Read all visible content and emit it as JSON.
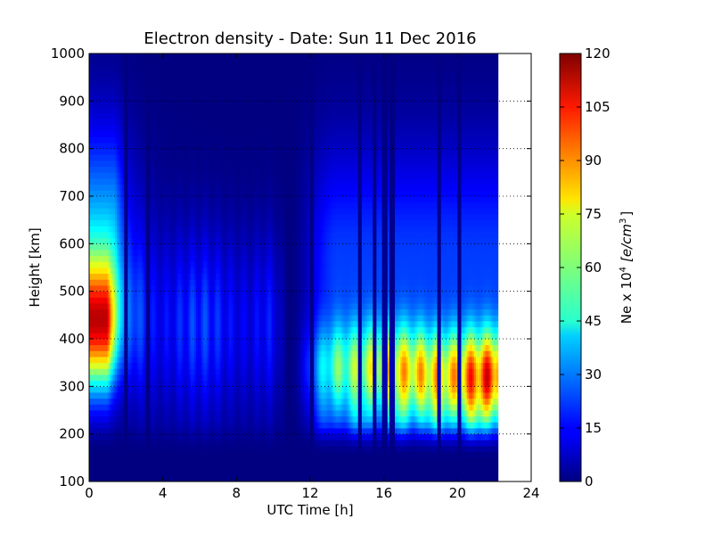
{
  "chart_data": {
    "type": "heatmap",
    "title": "Electron density - Date: Sun 11 Dec 2016",
    "xlabel": "UTC Time [h]",
    "ylabel": "Height [km]",
    "xlim": [
      0,
      24
    ],
    "ylim": [
      100,
      1000
    ],
    "x_ticks": [
      "0",
      "4",
      "8",
      "12",
      "16",
      "20",
      "24"
    ],
    "y_ticks": [
      "100",
      "200",
      "300",
      "400",
      "500",
      "600",
      "700",
      "800",
      "900",
      "1000"
    ],
    "data_end_hour": 22.2,
    "colormap": "jet",
    "colorbar": {
      "label": "Ne x 10^4 [e/cm^3]",
      "label_parts": {
        "prefix": "Ne x 10",
        "exponent": "4",
        "unit": "[e/cm",
        "unit_exp": "3",
        "unit_close": "]"
      },
      "range": [
        0,
        120
      ],
      "ticks": [
        "0",
        "15",
        "30",
        "45",
        "60",
        "75",
        "90",
        "105",
        "120"
      ]
    },
    "grid": "dotted horizontal at y ticks",
    "features": {
      "morning_peak": {
        "hours": [
          0,
          0.9
        ],
        "height_km": 430,
        "max_ne": 95
      },
      "night_minimum": {
        "hours": [
          4,
          11
        ],
        "max_ne": 30
      },
      "day_layer": {
        "hours": [
          11,
          22.2
        ],
        "height_km": 320,
        "max_ne": 108
      },
      "dropout_hours": [
        2.0,
        3.2,
        10.9,
        12.1,
        14.7,
        15.5,
        16.05,
        16.45,
        19.0,
        20.1
      ]
    }
  }
}
